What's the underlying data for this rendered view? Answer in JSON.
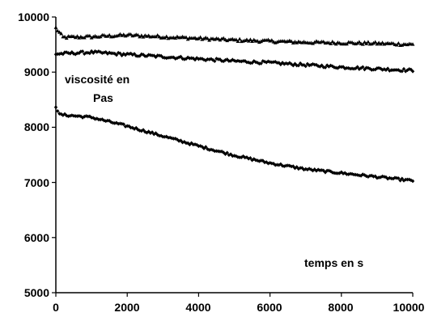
{
  "chart_data": {
    "type": "scatter",
    "title": "",
    "xlabel": "",
    "ylabel": "",
    "xlim": [
      0,
      10000
    ],
    "ylim": [
      5000,
      10000
    ],
    "x_ticks": [
      "0",
      "2000",
      "4000",
      "6000",
      "8000",
      "10000"
    ],
    "y_ticks": [
      "5000",
      "6000",
      "7000",
      "8000",
      "9000",
      "10000"
    ],
    "grid": false,
    "legend": "none",
    "annotations": {
      "y_note_line1": "viscosité en",
      "y_note_line2": "Pas",
      "x_note": "temps en s"
    },
    "series": [
      {
        "marker": "triangle",
        "color": "#000000",
        "noise": 25,
        "points": [
          [
            0,
            9800
          ],
          [
            200,
            9630
          ],
          [
            1000,
            9640
          ],
          [
            2000,
            9670
          ],
          [
            3000,
            9640
          ],
          [
            4000,
            9610
          ],
          [
            5000,
            9580
          ],
          [
            6000,
            9560
          ],
          [
            7000,
            9540
          ],
          [
            8000,
            9530
          ],
          [
            9000,
            9520
          ],
          [
            10000,
            9500
          ]
        ]
      },
      {
        "marker": "diamond",
        "color": "#000000",
        "noise": 25,
        "points": [
          [
            0,
            9330
          ],
          [
            1000,
            9360
          ],
          [
            2000,
            9320
          ],
          [
            3000,
            9280
          ],
          [
            4000,
            9240
          ],
          [
            5000,
            9200
          ],
          [
            6000,
            9170
          ],
          [
            7000,
            9130
          ],
          [
            8000,
            9090
          ],
          [
            9000,
            9060
          ],
          [
            10000,
            9030
          ]
        ]
      },
      {
        "marker": "diamond",
        "color": "#000000",
        "noise": 20,
        "points": [
          [
            0,
            8380
          ],
          [
            100,
            8230
          ],
          [
            1000,
            8180
          ],
          [
            2000,
            8020
          ],
          [
            3000,
            7840
          ],
          [
            4000,
            7660
          ],
          [
            5000,
            7490
          ],
          [
            6000,
            7350
          ],
          [
            7000,
            7240
          ],
          [
            8000,
            7170
          ],
          [
            9000,
            7100
          ],
          [
            10000,
            7030
          ]
        ]
      }
    ]
  }
}
